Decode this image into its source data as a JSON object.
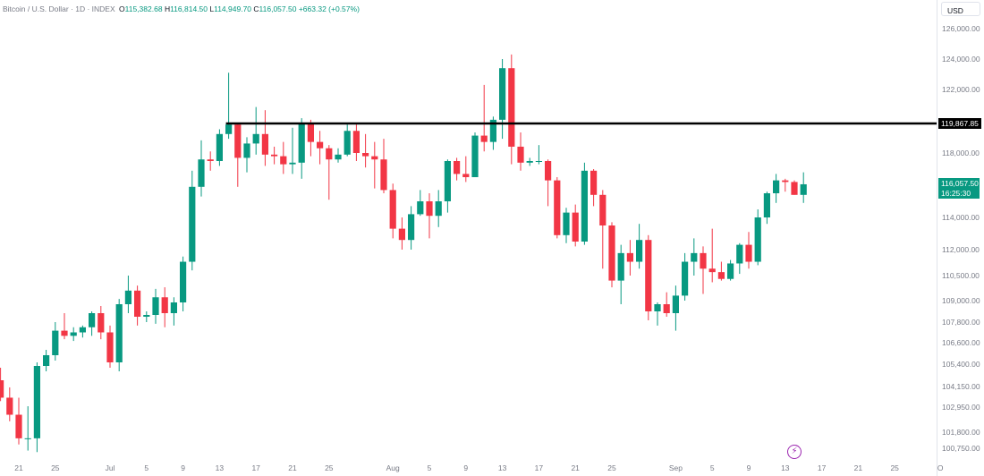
{
  "header": {
    "symbol": "Bitcoin / U.S. Dollar · 1D · INDEX",
    "open_key": "O",
    "open": "115,382.68",
    "high_key": "H",
    "high": "116,814.50",
    "low_key": "L",
    "low": "114,949.70",
    "close_key": "C",
    "close": "116,057.50",
    "change": "+663.32 (+0.57%)"
  },
  "currency_button": "USD",
  "level_line": {
    "value": 119867.85,
    "label": "119,867.85"
  },
  "last_price": {
    "label": "116,057.50",
    "countdown": "16:25:30"
  },
  "lightning_icon": "⚡",
  "colors": {
    "up": "#089981",
    "down": "#f23645",
    "level": "#000000",
    "text": "#131722",
    "muted": "#787b86"
  },
  "chart_data": {
    "type": "candlestick",
    "title": "Bitcoin / U.S. Dollar · 1D · INDEX",
    "y_axis": {
      "ticks": [
        100750,
        101800,
        102950,
        104150,
        105400,
        106600,
        107800,
        109000,
        110500,
        112000,
        114000,
        116000,
        118000,
        122000,
        124000,
        126000
      ],
      "labels": [
        "100,750.00",
        "101,800.00",
        "102,950.00",
        "104,150.00",
        "105,400.00",
        "106,600.00",
        "107,800.00",
        "109,000.00",
        "110,500.00",
        "112,000.00",
        "114,000.00",
        "116,000.00",
        "118,000.00",
        "122,000.00",
        "124,000.00",
        "126,000.00"
      ]
    },
    "x_axis": {
      "labels": [
        {
          "label": "21",
          "date": "2025-06-21"
        },
        {
          "label": "25",
          "date": "2025-06-25"
        },
        {
          "label": "Jul",
          "date": "2025-07-01"
        },
        {
          "label": "5",
          "date": "2025-07-05"
        },
        {
          "label": "9",
          "date": "2025-07-09"
        },
        {
          "label": "13",
          "date": "2025-07-13"
        },
        {
          "label": "17",
          "date": "2025-07-17"
        },
        {
          "label": "21",
          "date": "2025-07-21"
        },
        {
          "label": "25",
          "date": "2025-07-25"
        },
        {
          "label": "Aug",
          "date": "2025-08-01"
        },
        {
          "label": "5",
          "date": "2025-08-05"
        },
        {
          "label": "9",
          "date": "2025-08-09"
        },
        {
          "label": "13",
          "date": "2025-08-13"
        },
        {
          "label": "17",
          "date": "2025-08-17"
        },
        {
          "label": "21",
          "date": "2025-08-21"
        },
        {
          "label": "25",
          "date": "2025-08-25"
        },
        {
          "label": "Sep",
          "date": "2025-09-01"
        },
        {
          "label": "5",
          "date": "2025-09-05"
        },
        {
          "label": "9",
          "date": "2025-09-09"
        },
        {
          "label": "13",
          "date": "2025-09-13"
        },
        {
          "label": "17",
          "date": "2025-09-17"
        },
        {
          "label": "21",
          "date": "2025-09-21"
        },
        {
          "label": "25",
          "date": "2025-09-25"
        },
        {
          "label": "O",
          "date": "2025-09-30"
        }
      ]
    },
    "candles": [
      {
        "date": "2025-06-18",
        "open": 104900,
        "high": 106500,
        "low": 104300,
        "close": 104500
      },
      {
        "date": "2025-06-19",
        "open": 104500,
        "high": 105200,
        "low": 103300,
        "close": 103500
      },
      {
        "date": "2025-06-20",
        "open": 103500,
        "high": 104100,
        "low": 102300,
        "close": 102600
      },
      {
        "date": "2025-06-21",
        "open": 102600,
        "high": 103500,
        "low": 101000,
        "close": 101400
      },
      {
        "date": "2025-06-22",
        "open": 101400,
        "high": 103000,
        "low": 100600,
        "close": 101400
      },
      {
        "date": "2025-06-23",
        "open": 101400,
        "high": 105500,
        "low": 100500,
        "close": 105300
      },
      {
        "date": "2025-06-24",
        "open": 105300,
        "high": 106200,
        "low": 105000,
        "close": 105900
      },
      {
        "date": "2025-06-25",
        "open": 105900,
        "high": 107800,
        "low": 105600,
        "close": 107300
      },
      {
        "date": "2025-06-26",
        "open": 107300,
        "high": 108300,
        "low": 106800,
        "close": 107000
      },
      {
        "date": "2025-06-27",
        "open": 107000,
        "high": 107500,
        "low": 106700,
        "close": 107200
      },
      {
        "date": "2025-06-28",
        "open": 107200,
        "high": 107600,
        "low": 106900,
        "close": 107500
      },
      {
        "date": "2025-06-29",
        "open": 107500,
        "high": 108400,
        "low": 107000,
        "close": 108300
      },
      {
        "date": "2025-06-30",
        "open": 108300,
        "high": 108700,
        "low": 106800,
        "close": 107200
      },
      {
        "date": "2025-07-01",
        "open": 107200,
        "high": 107600,
        "low": 105200,
        "close": 105500
      },
      {
        "date": "2025-07-02",
        "open": 105500,
        "high": 109100,
        "low": 105000,
        "close": 108800
      },
      {
        "date": "2025-07-03",
        "open": 108800,
        "high": 110500,
        "low": 108300,
        "close": 109600
      },
      {
        "date": "2025-07-04",
        "open": 109600,
        "high": 109900,
        "low": 107600,
        "close": 108100
      },
      {
        "date": "2025-07-05",
        "open": 108100,
        "high": 108400,
        "low": 107800,
        "close": 108200
      },
      {
        "date": "2025-07-06",
        "open": 108200,
        "high": 109700,
        "low": 107700,
        "close": 109200
      },
      {
        "date": "2025-07-07",
        "open": 109200,
        "high": 109800,
        "low": 107500,
        "close": 108300
      },
      {
        "date": "2025-07-08",
        "open": 108300,
        "high": 109200,
        "low": 107600,
        "close": 108900
      },
      {
        "date": "2025-07-09",
        "open": 108900,
        "high": 111600,
        "low": 108400,
        "close": 111300
      },
      {
        "date": "2025-07-10",
        "open": 111300,
        "high": 116900,
        "low": 110800,
        "close": 115900
      },
      {
        "date": "2025-07-11",
        "open": 115900,
        "high": 118800,
        "low": 115300,
        "close": 117600
      },
      {
        "date": "2025-07-12",
        "open": 117600,
        "high": 118100,
        "low": 116900,
        "close": 117500
      },
      {
        "date": "2025-07-13",
        "open": 117500,
        "high": 119500,
        "low": 117200,
        "close": 119200
      },
      {
        "date": "2025-07-14",
        "open": 119200,
        "high": 123100,
        "low": 118900,
        "close": 119800
      },
      {
        "date": "2025-07-15",
        "open": 119800,
        "high": 119900,
        "low": 115900,
        "close": 117700
      },
      {
        "date": "2025-07-16",
        "open": 117700,
        "high": 119000,
        "low": 116800,
        "close": 118600
      },
      {
        "date": "2025-07-17",
        "open": 118600,
        "high": 120900,
        "low": 117900,
        "close": 119200
      },
      {
        "date": "2025-07-18",
        "open": 119200,
        "high": 120700,
        "low": 117200,
        "close": 117900
      },
      {
        "date": "2025-07-19",
        "open": 117900,
        "high": 118400,
        "low": 117300,
        "close": 117800
      },
      {
        "date": "2025-07-20",
        "open": 117800,
        "high": 118700,
        "low": 116700,
        "close": 117300
      },
      {
        "date": "2025-07-21",
        "open": 117300,
        "high": 119600,
        "low": 116700,
        "close": 117400
      },
      {
        "date": "2025-07-22",
        "open": 117400,
        "high": 120200,
        "low": 116400,
        "close": 119900
      },
      {
        "date": "2025-07-23",
        "open": 119900,
        "high": 120100,
        "low": 117800,
        "close": 118700
      },
      {
        "date": "2025-07-24",
        "open": 118700,
        "high": 119400,
        "low": 117300,
        "close": 118300
      },
      {
        "date": "2025-07-25",
        "open": 118300,
        "high": 118500,
        "low": 115100,
        "close": 117600
      },
      {
        "date": "2025-07-26",
        "open": 117600,
        "high": 118300,
        "low": 117400,
        "close": 117900
      },
      {
        "date": "2025-07-27",
        "open": 117900,
        "high": 119800,
        "low": 117800,
        "close": 119400
      },
      {
        "date": "2025-07-28",
        "open": 119400,
        "high": 119800,
        "low": 117500,
        "close": 118000
      },
      {
        "date": "2025-07-29",
        "open": 118000,
        "high": 119200,
        "low": 117100,
        "close": 117800
      },
      {
        "date": "2025-07-30",
        "open": 117800,
        "high": 118700,
        "low": 115800,
        "close": 117600
      },
      {
        "date": "2025-07-31",
        "open": 117600,
        "high": 118900,
        "low": 115500,
        "close": 115700
      },
      {
        "date": "2025-08-01",
        "open": 115700,
        "high": 116100,
        "low": 112700,
        "close": 113300
      },
      {
        "date": "2025-08-02",
        "open": 113300,
        "high": 114000,
        "low": 112000,
        "close": 112600
      },
      {
        "date": "2025-08-03",
        "open": 112600,
        "high": 114700,
        "low": 112000,
        "close": 114200
      },
      {
        "date": "2025-08-04",
        "open": 114200,
        "high": 115700,
        "low": 114100,
        "close": 115000
      },
      {
        "date": "2025-08-05",
        "open": 115000,
        "high": 115500,
        "low": 112700,
        "close": 114100
      },
      {
        "date": "2025-08-06",
        "open": 114100,
        "high": 115700,
        "low": 113400,
        "close": 115000
      },
      {
        "date": "2025-08-07",
        "open": 115000,
        "high": 117600,
        "low": 114300,
        "close": 117500
      },
      {
        "date": "2025-08-08",
        "open": 117500,
        "high": 117700,
        "low": 116300,
        "close": 116700
      },
      {
        "date": "2025-08-09",
        "open": 116700,
        "high": 117800,
        "low": 116200,
        "close": 116500
      },
      {
        "date": "2025-08-10",
        "open": 116500,
        "high": 119300,
        "low": 116500,
        "close": 119100
      },
      {
        "date": "2025-08-11",
        "open": 119100,
        "high": 122300,
        "low": 118100,
        "close": 118700
      },
      {
        "date": "2025-08-12",
        "open": 118700,
        "high": 120300,
        "low": 118200,
        "close": 120100
      },
      {
        "date": "2025-08-13",
        "open": 120100,
        "high": 124000,
        "low": 118900,
        "close": 123400
      },
      {
        "date": "2025-08-14",
        "open": 123400,
        "high": 124300,
        "low": 117300,
        "close": 118400
      },
      {
        "date": "2025-08-15",
        "open": 118400,
        "high": 119300,
        "low": 116900,
        "close": 117400
      },
      {
        "date": "2025-08-16",
        "open": 117400,
        "high": 117700,
        "low": 117200,
        "close": 117500
      },
      {
        "date": "2025-08-17",
        "open": 117500,
        "high": 118500,
        "low": 117300,
        "close": 117500
      },
      {
        "date": "2025-08-18",
        "open": 117500,
        "high": 117600,
        "low": 114700,
        "close": 116300
      },
      {
        "date": "2025-08-19",
        "open": 116300,
        "high": 116500,
        "low": 112700,
        "close": 112900
      },
      {
        "date": "2025-08-20",
        "open": 112900,
        "high": 114600,
        "low": 112400,
        "close": 114300
      },
      {
        "date": "2025-08-21",
        "open": 114300,
        "high": 114800,
        "low": 112200,
        "close": 112500
      },
      {
        "date": "2025-08-22",
        "open": 112500,
        "high": 117400,
        "low": 112300,
        "close": 116900
      },
      {
        "date": "2025-08-23",
        "open": 116900,
        "high": 117000,
        "low": 114700,
        "close": 115400
      },
      {
        "date": "2025-08-24",
        "open": 115400,
        "high": 115700,
        "low": 110900,
        "close": 113500
      },
      {
        "date": "2025-08-25",
        "open": 113500,
        "high": 113700,
        "low": 109800,
        "close": 110200
      },
      {
        "date": "2025-08-26",
        "open": 110200,
        "high": 112300,
        "low": 108800,
        "close": 111800
      },
      {
        "date": "2025-08-27",
        "open": 111800,
        "high": 112600,
        "low": 110500,
        "close": 111300
      },
      {
        "date": "2025-08-28",
        "open": 111300,
        "high": 113600,
        "low": 110900,
        "close": 112600
      },
      {
        "date": "2025-08-29",
        "open": 112600,
        "high": 112900,
        "low": 107900,
        "close": 108400
      },
      {
        "date": "2025-08-30",
        "open": 108400,
        "high": 108900,
        "low": 107600,
        "close": 108800
      },
      {
        "date": "2025-08-31",
        "open": 108800,
        "high": 109500,
        "low": 108100,
        "close": 108300
      },
      {
        "date": "2025-09-01",
        "open": 108300,
        "high": 109900,
        "low": 107300,
        "close": 109300
      },
      {
        "date": "2025-09-02",
        "open": 109300,
        "high": 111800,
        "low": 109000,
        "close": 111300
      },
      {
        "date": "2025-09-03",
        "open": 111300,
        "high": 112700,
        "low": 110500,
        "close": 111800
      },
      {
        "date": "2025-09-04",
        "open": 111800,
        "high": 112200,
        "low": 109400,
        "close": 110900
      },
      {
        "date": "2025-09-05",
        "open": 110900,
        "high": 113300,
        "low": 110100,
        "close": 110700
      },
      {
        "date": "2025-09-06",
        "open": 110700,
        "high": 111300,
        "low": 110200,
        "close": 110300
      },
      {
        "date": "2025-09-07",
        "open": 110300,
        "high": 111400,
        "low": 110200,
        "close": 111200
      },
      {
        "date": "2025-09-08",
        "open": 111200,
        "high": 112400,
        "low": 110600,
        "close": 112300
      },
      {
        "date": "2025-09-09",
        "open": 112300,
        "high": 113100,
        "low": 110900,
        "close": 111300
      },
      {
        "date": "2025-09-10",
        "open": 111300,
        "high": 114500,
        "low": 111100,
        "close": 114000
      },
      {
        "date": "2025-09-11",
        "open": 114000,
        "high": 115600,
        "low": 113600,
        "close": 115500
      },
      {
        "date": "2025-09-12",
        "open": 115500,
        "high": 116700,
        "low": 114900,
        "close": 116300
      },
      {
        "date": "2025-09-13",
        "open": 116300,
        "high": 116400,
        "low": 115600,
        "close": 116200
      },
      {
        "date": "2025-09-14",
        "open": 116200,
        "high": 116300,
        "low": 115400,
        "close": 115400
      },
      {
        "date": "2025-09-15",
        "open": 115400,
        "high": 116800,
        "low": 114900,
        "close": 116057.5
      }
    ],
    "horizontal_line": 119867.85,
    "last_price": 116057.5,
    "grid": false,
    "colors": {
      "up": "#089981",
      "down": "#f23645"
    }
  }
}
